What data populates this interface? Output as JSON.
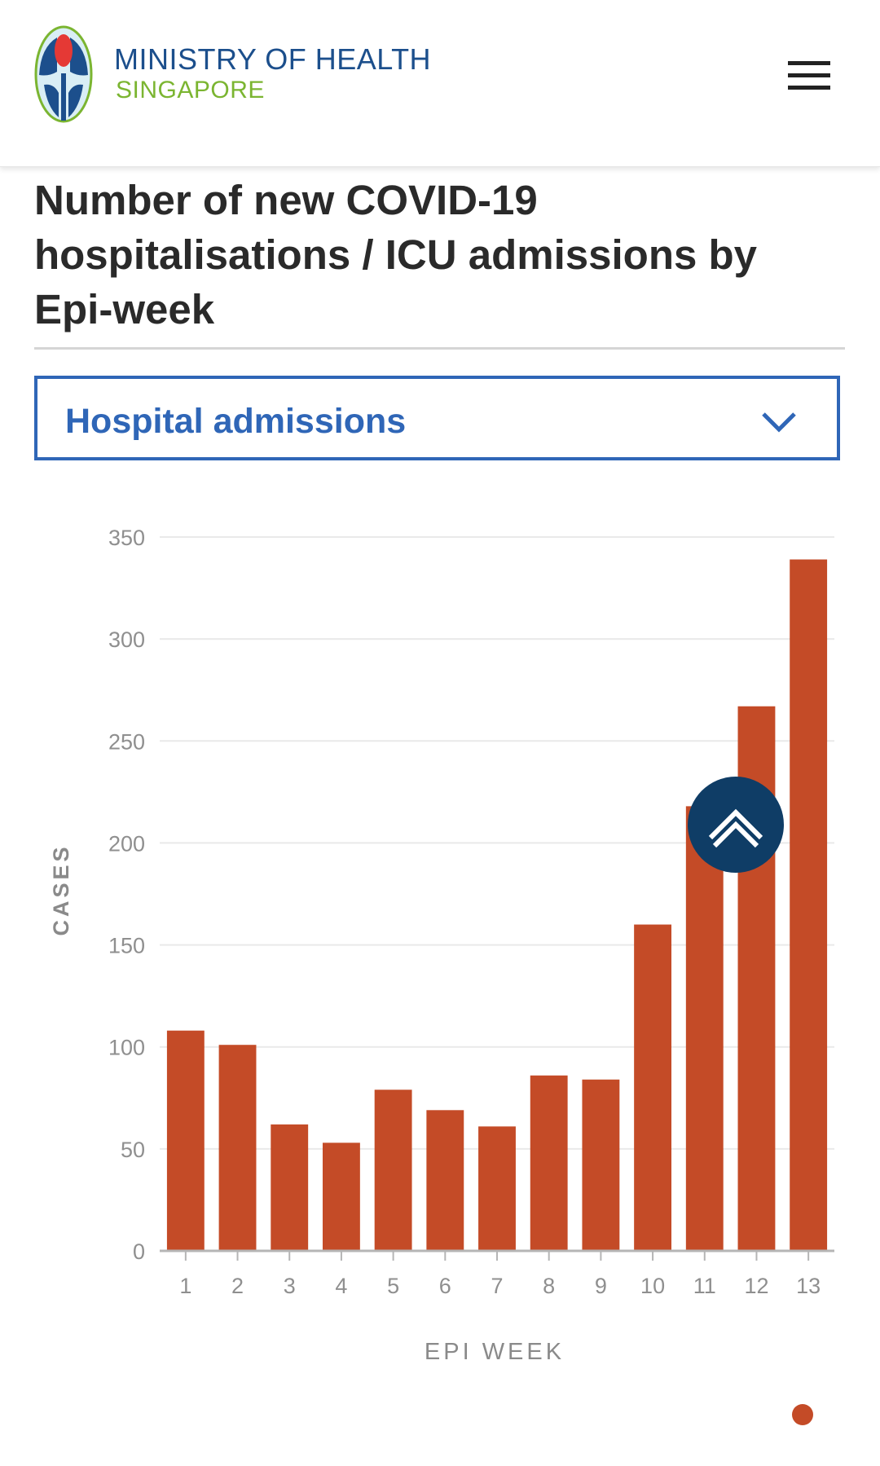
{
  "header": {
    "brand_line1": "MINISTRY OF HEALTH",
    "brand_line2": "SINGAPORE",
    "logo_icon": "moh-logo-icon",
    "menu_icon": "hamburger-menu-icon"
  },
  "page_title": "Number of new COVID-19 hospitalisations / ICU admissions by Epi-week",
  "select": {
    "value": "Hospital admissions",
    "icon": "chevron-down-icon"
  },
  "colors": {
    "bar": "#c44b27",
    "accent_blue": "#2f66b7",
    "brand_blue": "#1c4f8c",
    "brand_green": "#7bb531",
    "scroll_button": "#0f3d66"
  },
  "scroll_top_icon": "double-chevron-up-icon",
  "chart_data": {
    "type": "bar",
    "title": "",
    "xlabel": "EPI WEEK",
    "ylabel": "CASES",
    "categories": [
      "1",
      "2",
      "3",
      "4",
      "5",
      "6",
      "7",
      "8",
      "9",
      "10",
      "11",
      "12",
      "13"
    ],
    "values": [
      108,
      101,
      62,
      53,
      79,
      69,
      61,
      86,
      84,
      160,
      218,
      267,
      339
    ],
    "ylim": [
      0,
      350
    ],
    "yticks": [
      0,
      50,
      100,
      150,
      200,
      250,
      300,
      350
    ],
    "grid": true,
    "legend": "none"
  }
}
